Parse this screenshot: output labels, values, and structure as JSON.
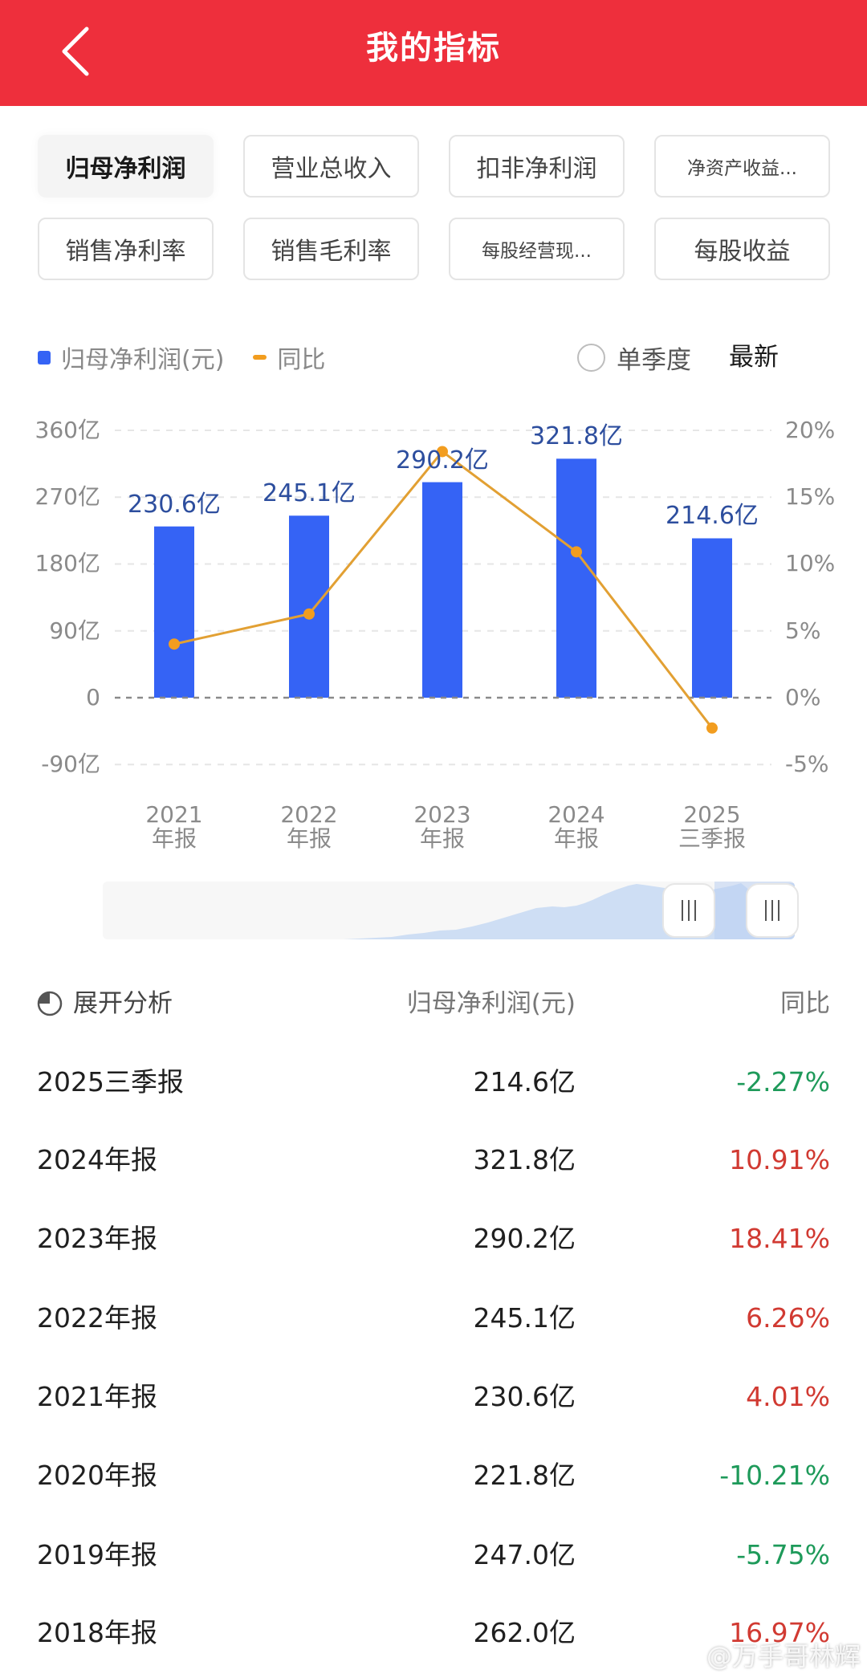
{
  "header": {
    "title": "我的指标",
    "back_icon": "chevron-left-icon",
    "background_color": "#EE2F3C"
  },
  "tabs": [
    {
      "label": "归母净利润",
      "active": true
    },
    {
      "label": "营业总收入",
      "active": false
    },
    {
      "label": "扣非净利润",
      "active": false
    },
    {
      "label": "净资产收益...",
      "active": false
    },
    {
      "label": "销售净利率",
      "active": false
    },
    {
      "label": "销售毛利率",
      "active": false
    },
    {
      "label": "每股经营现...",
      "active": false
    },
    {
      "label": "每股收益",
      "active": false
    }
  ],
  "legend": {
    "bar_label": "归母净利润(元)",
    "line_label": "同比",
    "single_quarter_label": "单季度",
    "latest_label": "最新"
  },
  "chart_data": {
    "type": "bar+line",
    "categories": [
      "2021 年报",
      "2022 年报",
      "2023 年报",
      "2024 年报",
      "2025 三季报"
    ],
    "category_lines": [
      [
        "2021",
        "年报"
      ],
      [
        "2022",
        "年报"
      ],
      [
        "2023",
        "年报"
      ],
      [
        "2024",
        "年报"
      ],
      [
        "2025",
        "三季报"
      ]
    ],
    "series": [
      {
        "name": "归母净利润(元)",
        "type": "bar",
        "unit": "亿",
        "values": [
          230.6,
          245.1,
          290.2,
          321.8,
          214.6
        ],
        "labels": [
          "230.6亿",
          "245.1亿",
          "290.2亿",
          "321.8亿",
          "214.6亿"
        ],
        "color": "#3563F5"
      },
      {
        "name": "同比",
        "type": "line",
        "unit": "%",
        "axis": "right",
        "values": [
          4.01,
          6.26,
          18.41,
          10.91,
          -2.27
        ],
        "color": "#F29D1F"
      }
    ],
    "left_axis": {
      "ticks": [
        "360亿",
        "270亿",
        "180亿",
        "90亿",
        "0",
        "-90亿"
      ],
      "range": [
        -90,
        360
      ]
    },
    "right_axis": {
      "ticks": [
        "20%",
        "15%",
        "10%",
        "5%",
        "0%",
        "-5%"
      ],
      "range": [
        -5,
        20
      ]
    },
    "grid": true,
    "legend_position": "top-left"
  },
  "table": {
    "expand_label": "展开分析",
    "col_value_header": "归母净利润(元)",
    "col_yoy_header": "同比",
    "rows": [
      {
        "period": "2025三季报",
        "value": "214.6亿",
        "yoy": "-2.27%",
        "dir": "down"
      },
      {
        "period": "2024年报",
        "value": "321.8亿",
        "yoy": "10.91%",
        "dir": "up"
      },
      {
        "period": "2023年报",
        "value": "290.2亿",
        "yoy": "18.41%",
        "dir": "up"
      },
      {
        "period": "2022年报",
        "value": "245.1亿",
        "yoy": "6.26%",
        "dir": "up"
      },
      {
        "period": "2021年报",
        "value": "230.6亿",
        "yoy": "4.01%",
        "dir": "up"
      },
      {
        "period": "2020年报",
        "value": "221.8亿",
        "yoy": "-10.21%",
        "dir": "down"
      },
      {
        "period": "2019年报",
        "value": "247.0亿",
        "yoy": "-5.75%",
        "dir": "down"
      },
      {
        "period": "2018年报",
        "value": "262.0亿",
        "yoy": "16.97%",
        "dir": "up"
      }
    ]
  },
  "watermark": {
    "text": "@万手哥林辉"
  },
  "colors": {
    "up": "#D13A32",
    "down": "#1E9A5A",
    "bar": "#3563F5",
    "line": "#F29D1F",
    "bar_label": "#2D4E9E"
  }
}
